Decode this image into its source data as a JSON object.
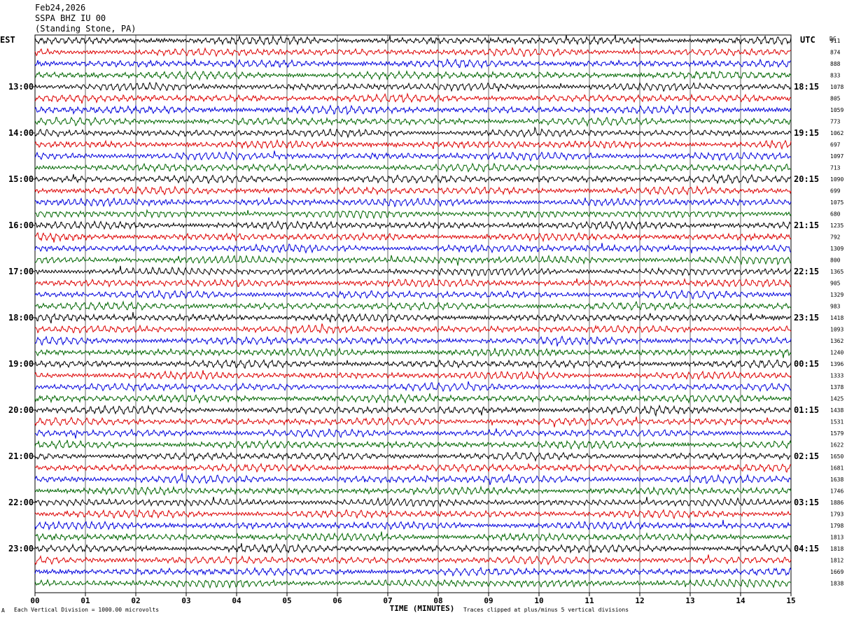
{
  "header": {
    "date": "Feb24,2026",
    "station": "SSPA BHZ IU 00",
    "location": "(Standing Stone, PA)"
  },
  "left_tz": "EST",
  "right_tz": "UTC",
  "dc_label": "DC",
  "footer": {
    "scale_note": "Each Vertical Division = 1000.00 microvolts",
    "clip_note": "Traces clipped at plus/minus 5 vertical divisions",
    "marker": "A"
  },
  "chart_data": {
    "type": "line",
    "xlabel": "TIME (MINUTES)",
    "x_ticks": [
      "00",
      "01",
      "02",
      "03",
      "04",
      "05",
      "06",
      "07",
      "08",
      "09",
      "10",
      "11",
      "12",
      "13",
      "14",
      "15"
    ],
    "xlim": [
      0,
      15
    ],
    "trace_colors": [
      "#000000",
      "#dd0000",
      "#0000dd",
      "#006600"
    ],
    "est_hour_labels": [
      "13:00",
      "14:00",
      "15:00",
      "16:00",
      "17:00",
      "18:00",
      "19:00",
      "20:00",
      "21:00",
      "22:00",
      "23:00"
    ],
    "utc_hour_labels": [
      "18:15",
      "19:15",
      "20:15",
      "21:15",
      "22:15",
      "23:15",
      "00:15",
      "01:15",
      "02:15",
      "03:15",
      "04:15"
    ],
    "dc_offsets": [
      "911",
      "874",
      "888",
      "833",
      "1078",
      "805",
      "1059",
      "773",
      "1062",
      "697",
      "1097",
      "713",
      "1090",
      "699",
      "1075",
      "680",
      "1235",
      "792",
      "1309",
      "800",
      "1365",
      "905",
      "1329",
      "983",
      "1418",
      "1093",
      "1362",
      "1240",
      "1396",
      "1333",
      "1378",
      "1425",
      "1438",
      "1531",
      "1579",
      "1622",
      "1650",
      "1681",
      "1638",
      "1746",
      "1886",
      "1793",
      "1798",
      "1813",
      "1818",
      "1812",
      "1669",
      "1838"
    ]
  }
}
